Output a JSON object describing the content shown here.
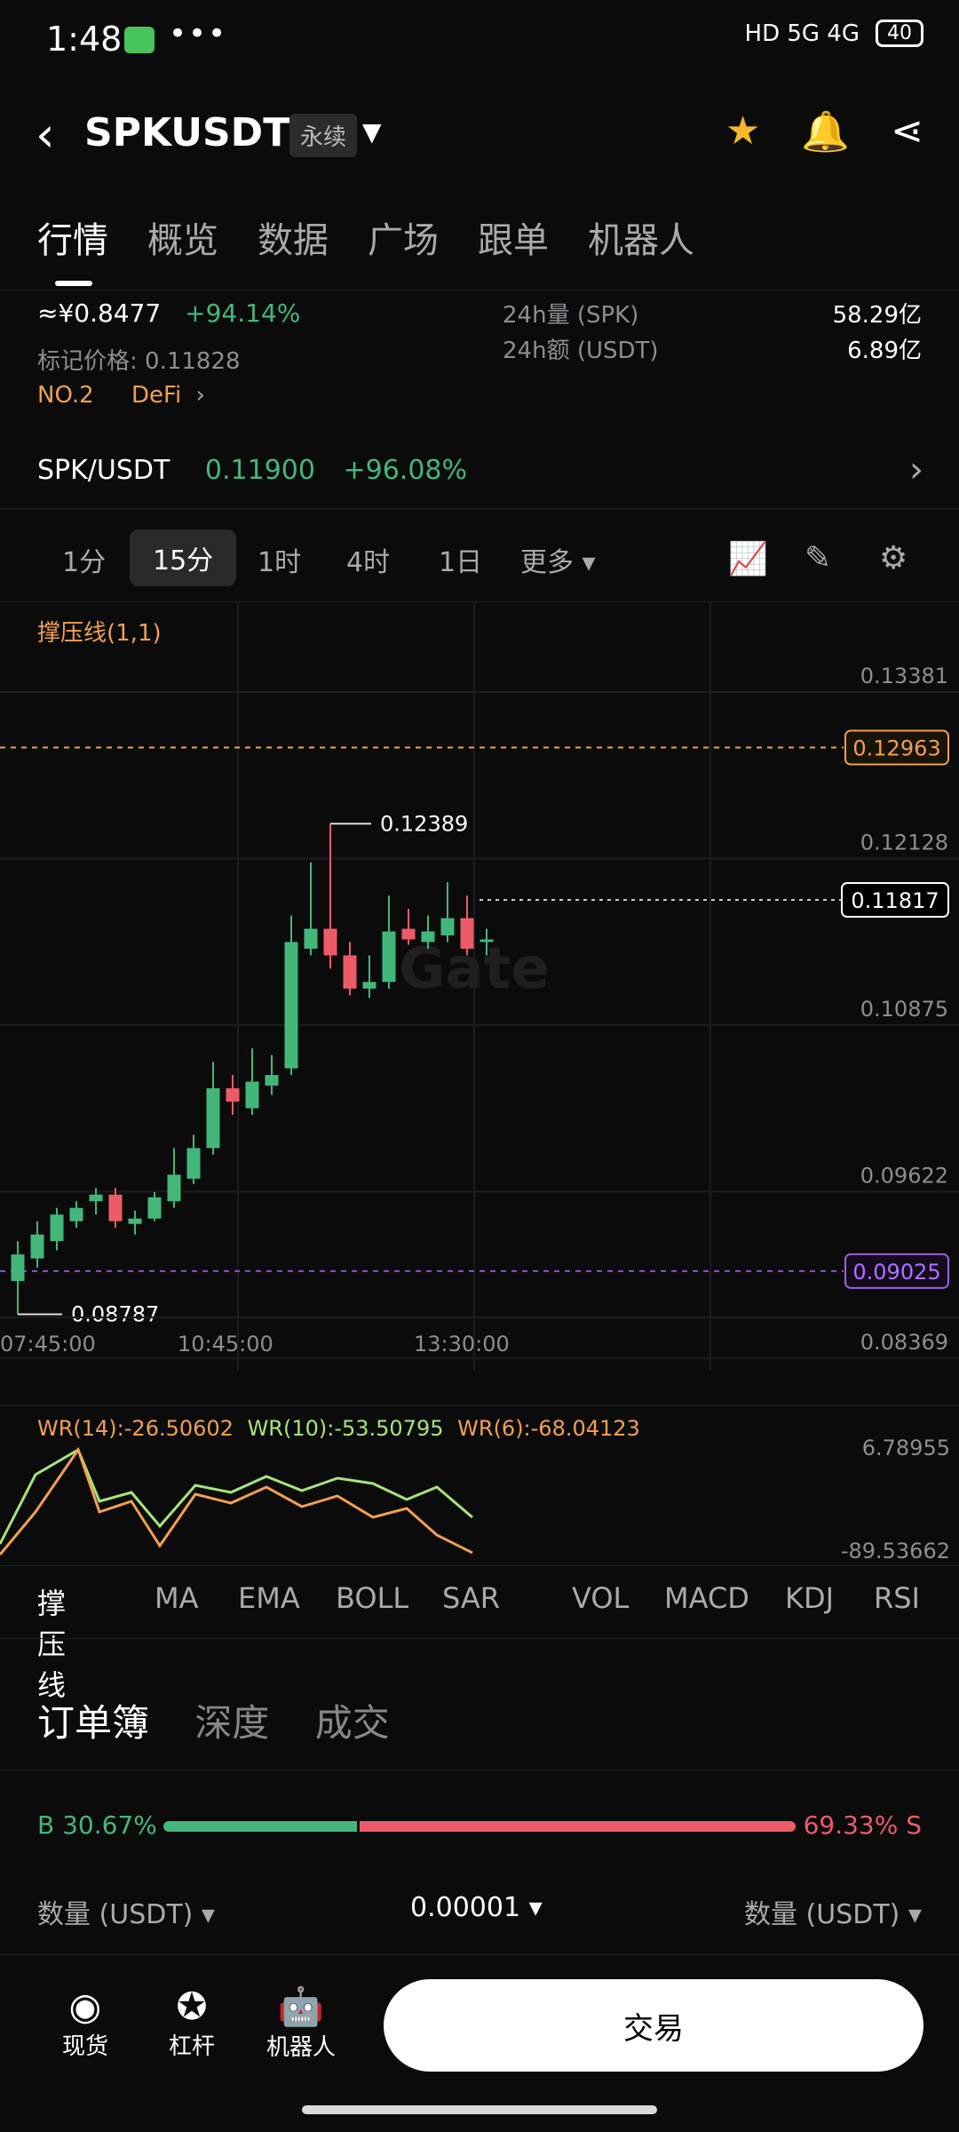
{
  "status": {
    "time": "1:48",
    "right": "HD 5G 4G",
    "battery": "40"
  },
  "header": {
    "pair": "SPKUSDT",
    "perp": "永续"
  },
  "tabs": [
    "行情",
    "概览",
    "数据",
    "广场",
    "跟单",
    "机器人"
  ],
  "summary": {
    "approx_price": "≈¥0.8477",
    "change_pct": "+94.14%",
    "mark_price": "标记价格: 0.11828",
    "rank": "NO.2",
    "category": "DeFi",
    "vol_spk_label": "24h量 (SPK)",
    "vol_spk_value": "58.29亿",
    "amt_usdt_label": "24h额 (USDT)",
    "amt_usdt_value": "6.89亿"
  },
  "spot": {
    "pair": "SPK/USDT",
    "price": "0.11900",
    "change": "+96.08%"
  },
  "intervals": [
    "1分",
    "15分",
    "1时",
    "4时",
    "1日",
    "更多"
  ],
  "chart": {
    "indicator": "撑压线(1,1)",
    "y_ticks": [
      "0.13381",
      "0.12128",
      "0.10875",
      "0.09622",
      "0.08369"
    ],
    "resistance": "0.12963",
    "current": "0.11817",
    "support": "0.09025",
    "high_label": "0.12389",
    "low_label": "0.08787",
    "x_ticks": [
      "07:45:00",
      "10:45:00",
      "13:30:00"
    ],
    "watermark": "Gate"
  },
  "wr": {
    "wr14": "WR(14):-26.50602",
    "wr10": "WR(10):-53.50795",
    "wr6": "WR(6):-68.04123",
    "top": "6.78955",
    "bottom": "-89.53662"
  },
  "indicator_tabs": [
    "撑压线",
    "MA",
    "EMA",
    "BOLL",
    "SAR",
    "VOL",
    "MACD",
    "KDJ",
    "RSI"
  ],
  "orderbook": {
    "tabs": [
      "订单簿",
      "深度",
      "成交"
    ],
    "buy": "B 30.67%",
    "sell": "69.33% S",
    "qty_left": "数量 (USDT)",
    "precision": "0.00001",
    "qty_right": "数量 (USDT)"
  },
  "bottom_nav": {
    "spot": "现货",
    "margin": "杠杆",
    "bot": "机器人",
    "trade": "交易"
  },
  "chart_data": {
    "type": "candlestick",
    "ohlc": [
      [
        0.0895,
        0.0915,
        0.087,
        0.0925
      ],
      [
        0.0912,
        0.093,
        0.0905,
        0.094
      ],
      [
        0.0925,
        0.0945,
        0.0918,
        0.095
      ],
      [
        0.094,
        0.095,
        0.0935,
        0.0955
      ],
      [
        0.0955,
        0.096,
        0.0945,
        0.0965
      ],
      [
        0.096,
        0.094,
        0.0935,
        0.0965
      ],
      [
        0.0938,
        0.0942,
        0.093,
        0.0948
      ],
      [
        0.0942,
        0.0958,
        0.094,
        0.0962
      ],
      [
        0.0955,
        0.0975,
        0.095,
        0.0995
      ],
      [
        0.0972,
        0.0995,
        0.0968,
        0.1005
      ],
      [
        0.0995,
        0.104,
        0.099,
        0.106
      ],
      [
        0.104,
        0.103,
        0.102,
        0.105
      ],
      [
        0.1025,
        0.1045,
        0.102,
        0.107
      ],
      [
        0.1042,
        0.105,
        0.1035,
        0.1065
      ],
      [
        0.1055,
        0.115,
        0.105,
        0.117
      ],
      [
        0.1145,
        0.116,
        0.114,
        0.121
      ],
      [
        0.116,
        0.114,
        0.113,
        0.1239
      ],
      [
        0.114,
        0.1115,
        0.111,
        0.115
      ],
      [
        0.1115,
        0.112,
        0.1108,
        0.114
      ],
      [
        0.112,
        0.1158,
        0.1115,
        0.1185
      ],
      [
        0.116,
        0.1152,
        0.1148,
        0.1175
      ],
      [
        0.115,
        0.1158,
        0.1145,
        0.117
      ],
      [
        0.1155,
        0.1168,
        0.115,
        0.1195
      ],
      [
        0.1168,
        0.1145,
        0.114,
        0.1185
      ],
      [
        0.115,
        0.1152,
        0.114,
        0.116
      ]
    ]
  }
}
